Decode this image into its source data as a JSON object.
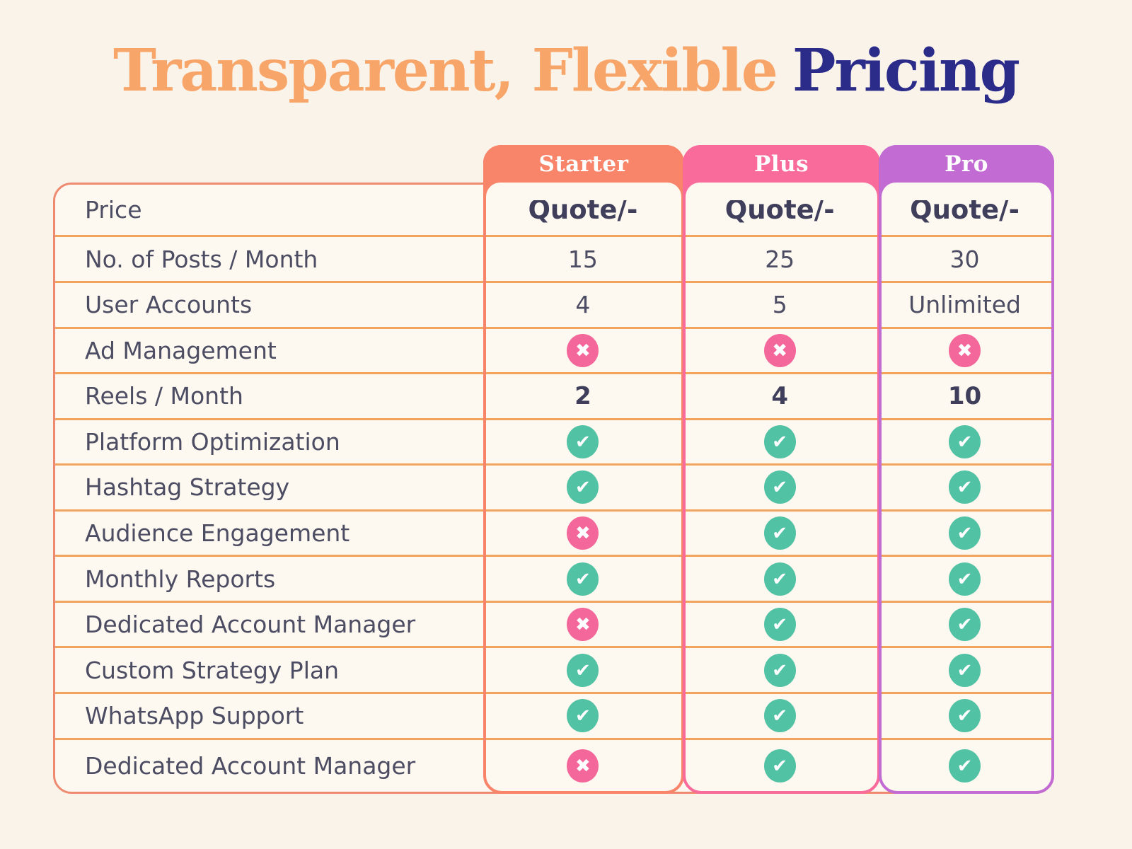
{
  "title": {
    "part1": "Transparent, Flexible",
    "part2": "Pricing"
  },
  "plans": [
    {
      "name": "Starter",
      "color": "#f8856a"
    },
    {
      "name": "Plus",
      "color": "#f96b9b"
    },
    {
      "name": "Pro",
      "color": "#c26bd3"
    }
  ],
  "chart_data": {
    "type": "table",
    "title": "Transparent, Flexible Pricing",
    "columns": [
      "Feature",
      "Starter",
      "Plus",
      "Pro"
    ],
    "rows": [
      {
        "label": "Price",
        "values": [
          "Quote/-",
          "Quote/-",
          "Quote/-"
        ],
        "style": "price"
      },
      {
        "label": "No. of Posts / Month",
        "values": [
          "15",
          "25",
          "30"
        ],
        "style": "text"
      },
      {
        "label": "User Accounts",
        "values": [
          "4",
          "5",
          "Unlimited"
        ],
        "style": "text"
      },
      {
        "label": "Ad Management",
        "values": [
          "cross",
          "cross",
          "cross"
        ],
        "style": "icon"
      },
      {
        "label": "Reels / Month",
        "values": [
          "2",
          "4",
          "10"
        ],
        "style": "bold"
      },
      {
        "label": "Platform Optimization",
        "values": [
          "check",
          "check",
          "check"
        ],
        "style": "icon"
      },
      {
        "label": "Hashtag Strategy",
        "values": [
          "check",
          "check",
          "check"
        ],
        "style": "icon"
      },
      {
        "label": "Audience Engagement",
        "values": [
          "cross",
          "check",
          "check"
        ],
        "style": "icon"
      },
      {
        "label": "Monthly Reports",
        "values": [
          "check",
          "check",
          "check"
        ],
        "style": "icon"
      },
      {
        "label": "Dedicated Account Manager",
        "values": [
          "cross",
          "check",
          "check"
        ],
        "style": "icon"
      },
      {
        "label": "Custom Strategy Plan",
        "values": [
          "check",
          "check",
          "check"
        ],
        "style": "icon"
      },
      {
        "label": "WhatsApp Support",
        "values": [
          "check",
          "check",
          "check"
        ],
        "style": "icon"
      },
      {
        "label": "Dedicated Account Manager",
        "values": [
          "cross",
          "check",
          "check"
        ],
        "style": "icon"
      }
    ]
  },
  "colors": {
    "background": "#faf3ea",
    "table_border": "#ee8a70",
    "row_line": "#f2a45f",
    "label_text": "#4c4c63",
    "price_text": "#3f3f5c",
    "title_orange": "#f8a569",
    "title_navy": "#2b2b8a",
    "check": "#52c2a5",
    "cross": "#f3679b"
  }
}
